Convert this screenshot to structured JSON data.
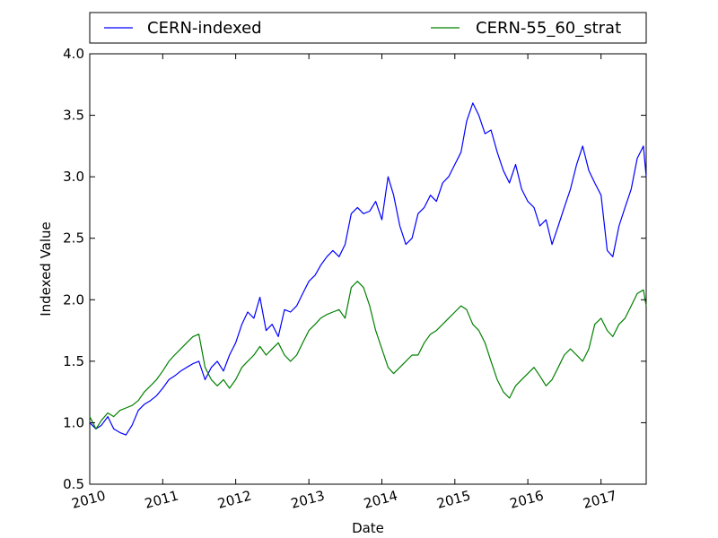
{
  "chart_data": {
    "type": "line",
    "title": "",
    "xlabel": "Date",
    "ylabel": "Indexed Value",
    "xlim": [
      "2010-01-01",
      "2017-08-15"
    ],
    "ylim": [
      0.5,
      4.0
    ],
    "yticks": [
      "0.5",
      "1.0",
      "1.5",
      "2.0",
      "2.5",
      "3.0",
      "3.5",
      "4.0"
    ],
    "xticks": [
      "2010",
      "2011",
      "2012",
      "2013",
      "2014",
      "2015",
      "2016",
      "2017"
    ],
    "xticks_rotation_deg": 15,
    "grid": false,
    "legend": {
      "placement": "top, above plot",
      "columns": 2
    },
    "series": [
      {
        "name": "CERN-indexed",
        "color": "#0000ff",
        "x": [
          "2010-01-01",
          "2010-02-01",
          "2010-03-01",
          "2010-04-01",
          "2010-05-01",
          "2010-06-01",
          "2010-07-01",
          "2010-08-01",
          "2010-09-01",
          "2010-10-01",
          "2010-11-01",
          "2010-12-01",
          "2011-01-01",
          "2011-02-01",
          "2011-03-01",
          "2011-04-01",
          "2011-05-01",
          "2011-06-01",
          "2011-07-01",
          "2011-08-01",
          "2011-09-01",
          "2011-10-01",
          "2011-11-01",
          "2011-12-01",
          "2012-01-01",
          "2012-02-01",
          "2012-03-01",
          "2012-04-01",
          "2012-05-01",
          "2012-06-01",
          "2012-07-01",
          "2012-08-01",
          "2012-09-01",
          "2012-10-01",
          "2012-11-01",
          "2012-12-01",
          "2013-01-01",
          "2013-02-01",
          "2013-03-01",
          "2013-04-01",
          "2013-05-01",
          "2013-06-01",
          "2013-07-01",
          "2013-08-01",
          "2013-09-01",
          "2013-10-01",
          "2013-11-01",
          "2013-12-01",
          "2014-01-01",
          "2014-02-01",
          "2014-03-01",
          "2014-04-01",
          "2014-05-01",
          "2014-06-01",
          "2014-07-01",
          "2014-08-01",
          "2014-09-01",
          "2014-10-01",
          "2014-11-01",
          "2014-12-01",
          "2015-01-01",
          "2015-02-01",
          "2015-03-01",
          "2015-04-01",
          "2015-05-01",
          "2015-06-01",
          "2015-07-01",
          "2015-08-01",
          "2015-09-01",
          "2015-10-01",
          "2015-11-01",
          "2015-12-01",
          "2016-01-01",
          "2016-02-01",
          "2016-03-01",
          "2016-04-01",
          "2016-05-01",
          "2016-06-01",
          "2016-07-01",
          "2016-08-01",
          "2016-09-01",
          "2016-10-01",
          "2016-11-01",
          "2016-12-01",
          "2017-01-01",
          "2017-02-01",
          "2017-03-01",
          "2017-04-01",
          "2017-05-01",
          "2017-06-01",
          "2017-07-01",
          "2017-08-01",
          "2017-08-15"
        ],
        "y": [
          1.0,
          0.95,
          0.98,
          1.05,
          0.95,
          0.92,
          0.9,
          0.98,
          1.1,
          1.15,
          1.18,
          1.22,
          1.28,
          1.35,
          1.38,
          1.42,
          1.45,
          1.48,
          1.5,
          1.35,
          1.45,
          1.5,
          1.42,
          1.55,
          1.65,
          1.8,
          1.9,
          1.85,
          2.02,
          1.75,
          1.8,
          1.7,
          1.92,
          1.9,
          1.95,
          2.05,
          2.15,
          2.2,
          2.28,
          2.35,
          2.4,
          2.35,
          2.45,
          2.7,
          2.75,
          2.7,
          2.72,
          2.8,
          2.65,
          3.0,
          2.85,
          2.6,
          2.45,
          2.5,
          2.7,
          2.75,
          2.85,
          2.8,
          2.95,
          3.0,
          3.1,
          3.2,
          3.45,
          3.6,
          3.5,
          3.35,
          3.38,
          3.2,
          3.05,
          2.95,
          3.1,
          2.9,
          2.8,
          2.75,
          2.6,
          2.65,
          2.45,
          2.6,
          2.75,
          2.9,
          3.1,
          3.25,
          3.05,
          2.95,
          2.85,
          2.4,
          2.35,
          2.6,
          2.75,
          2.9,
          3.15,
          3.25,
          3.0
        ]
      },
      {
        "name": "CERN-55_60_strat",
        "color": "#008000",
        "x": [
          "2010-01-01",
          "2010-02-01",
          "2010-03-01",
          "2010-04-01",
          "2010-05-01",
          "2010-06-01",
          "2010-07-01",
          "2010-08-01",
          "2010-09-01",
          "2010-10-01",
          "2010-11-01",
          "2010-12-01",
          "2011-01-01",
          "2011-02-01",
          "2011-03-01",
          "2011-04-01",
          "2011-05-01",
          "2011-06-01",
          "2011-07-01",
          "2011-08-01",
          "2011-09-01",
          "2011-10-01",
          "2011-11-01",
          "2011-12-01",
          "2012-01-01",
          "2012-02-01",
          "2012-03-01",
          "2012-04-01",
          "2012-05-01",
          "2012-06-01",
          "2012-07-01",
          "2012-08-01",
          "2012-09-01",
          "2012-10-01",
          "2012-11-01",
          "2012-12-01",
          "2013-01-01",
          "2013-02-01",
          "2013-03-01",
          "2013-04-01",
          "2013-05-01",
          "2013-06-01",
          "2013-07-01",
          "2013-08-01",
          "2013-09-01",
          "2013-10-01",
          "2013-11-01",
          "2013-12-01",
          "2014-01-01",
          "2014-02-01",
          "2014-03-01",
          "2014-04-01",
          "2014-05-01",
          "2014-06-01",
          "2014-07-01",
          "2014-08-01",
          "2014-09-01",
          "2014-10-01",
          "2014-11-01",
          "2014-12-01",
          "2015-01-01",
          "2015-02-01",
          "2015-03-01",
          "2015-04-01",
          "2015-05-01",
          "2015-06-01",
          "2015-07-01",
          "2015-08-01",
          "2015-09-01",
          "2015-10-01",
          "2015-11-01",
          "2015-12-01",
          "2016-01-01",
          "2016-02-01",
          "2016-03-01",
          "2016-04-01",
          "2016-05-01",
          "2016-06-01",
          "2016-07-01",
          "2016-08-01",
          "2016-09-01",
          "2016-10-01",
          "2016-11-01",
          "2016-12-01",
          "2017-01-01",
          "2017-02-01",
          "2017-03-01",
          "2017-04-01",
          "2017-05-01",
          "2017-06-01",
          "2017-07-01",
          "2017-08-01",
          "2017-08-15"
        ],
        "y": [
          1.05,
          0.95,
          1.02,
          1.08,
          1.05,
          1.1,
          1.12,
          1.14,
          1.18,
          1.25,
          1.3,
          1.35,
          1.42,
          1.5,
          1.55,
          1.6,
          1.65,
          1.7,
          1.72,
          1.45,
          1.35,
          1.3,
          1.35,
          1.28,
          1.35,
          1.45,
          1.5,
          1.55,
          1.62,
          1.55,
          1.6,
          1.65,
          1.55,
          1.5,
          1.55,
          1.65,
          1.75,
          1.8,
          1.85,
          1.88,
          1.9,
          1.92,
          1.85,
          2.1,
          2.15,
          2.1,
          1.95,
          1.75,
          1.6,
          1.45,
          1.4,
          1.45,
          1.5,
          1.55,
          1.55,
          1.65,
          1.72,
          1.75,
          1.8,
          1.85,
          1.9,
          1.95,
          1.92,
          1.8,
          1.75,
          1.65,
          1.5,
          1.35,
          1.25,
          1.2,
          1.3,
          1.35,
          1.4,
          1.45,
          1.38,
          1.3,
          1.35,
          1.45,
          1.55,
          1.6,
          1.55,
          1.5,
          1.6,
          1.8,
          1.85,
          1.75,
          1.7,
          1.8,
          1.85,
          1.95,
          2.05,
          2.08,
          1.95
        ]
      }
    ]
  }
}
